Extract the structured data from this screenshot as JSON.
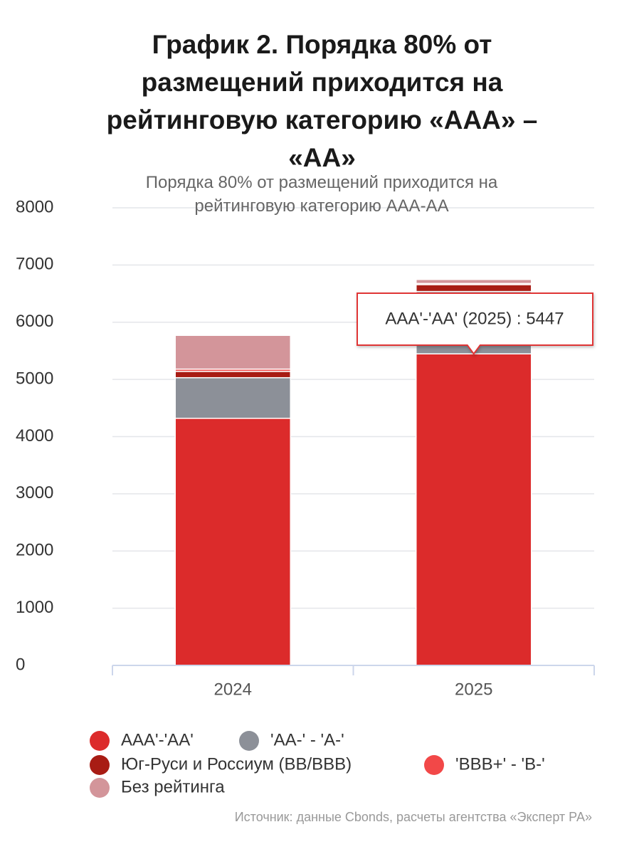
{
  "chart_data": {
    "type": "stacked_bar",
    "title": "График 2. Порядка 80% от размещений приходится на рейтинговую категорию «ААА» – «АА»",
    "subtitle": "Порядка 80% от размещений приходится на рейтинговую категорию AAA-AA",
    "categories": [
      "2024",
      "2025"
    ],
    "series": [
      {
        "name": "AAA'-'AA'",
        "color": "#dc2b2b",
        "values": [
          4320,
          5447
        ]
      },
      {
        "name": "'AA-' - 'A-'",
        "color": "#8c9098",
        "values": [
          710,
          1090
        ]
      },
      {
        "name": "Юг-Руси и Россиум (BB/BBB)",
        "color": "#a81c14",
        "values": [
          110,
          120
        ]
      },
      {
        "name": "'BBB+' - 'B-'",
        "color": "#f24848",
        "values": [
          40,
          20
        ]
      },
      {
        "name": "Без рейтинга",
        "color": "#d3959a",
        "values": [
          590,
          70
        ]
      }
    ],
    "ylim": [
      0,
      8000
    ],
    "yticks": [
      0,
      1000,
      2000,
      3000,
      4000,
      5000,
      6000,
      7000,
      8000
    ],
    "grid": true,
    "tooltip": {
      "text": "AAA'-'AA' (2025) : 5447",
      "series": 0,
      "point": 1
    },
    "source": "Источник: данные Cbonds, расчеты агентства «Эксперт РА»"
  }
}
